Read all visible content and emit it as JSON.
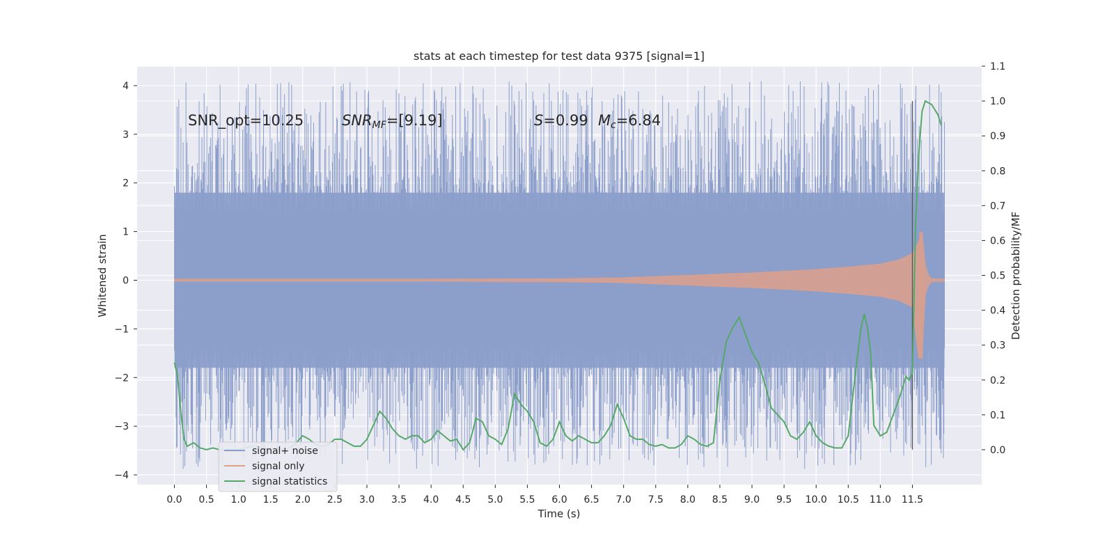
{
  "chart_data": {
    "type": "line",
    "title": "stats at each timestep for test data 9375 [signal=1]",
    "xlabel": "Time (s)",
    "ylabel": "Whitened strain",
    "y2label": "Detection probability/MF",
    "xlim": [
      -0.58,
      12.58
    ],
    "ylim": [
      -4.2,
      4.4
    ],
    "y2lim": [
      -0.1,
      1.1
    ],
    "grid": true,
    "legend_position": "lower-left",
    "x_ticks": [
      "0.0",
      "0.5",
      "1.0",
      "1.5",
      "2.0",
      "2.5",
      "3.0",
      "3.5",
      "4.0",
      "4.5",
      "5.0",
      "5.5",
      "6.0",
      "6.5",
      "7.0",
      "7.5",
      "8.0",
      "8.5",
      "9.0",
      "9.5",
      "10.0",
      "10.5",
      "11.0",
      "11.5"
    ],
    "y_ticks": [
      "−4",
      "−3",
      "−2",
      "−1",
      "0",
      "1",
      "2",
      "3",
      "4"
    ],
    "y2_ticks": [
      "0.0",
      "0.1",
      "0.2",
      "0.3",
      "0.4",
      "0.5",
      "0.6",
      "0.7",
      "0.8",
      "0.9",
      "1.0",
      "1.1"
    ],
    "annotations": {
      "snr_opt": "SNR_opt=10.25",
      "snr_mf_base": "SNR",
      "snr_mf_sub": "MF",
      "snr_mf_value": "=[9.19]",
      "s_symbol": "S",
      "s_value": "=0.99",
      "mc_base": "M",
      "mc_sub": "c",
      "mc_value": "=6.84"
    },
    "legend": [
      "signal+ noise",
      "signal only",
      "signal statistics"
    ],
    "colors": {
      "noise": "#8c9fcb",
      "signal": "#dd9f8a",
      "stats": "#55a868",
      "background": "#eaeaf2",
      "grid": "#ffffff"
    },
    "series": [
      {
        "name": "signal+ noise",
        "axis": "left",
        "time_range": [
          0.0,
          12.0
        ],
        "typical_band": [
          -1.8,
          1.8
        ],
        "spike_range": [
          -3.9,
          4.1
        ]
      },
      {
        "name": "signal only",
        "axis": "left",
        "merger_time": 11.65,
        "envelope": {
          "x": [
            0.0,
            2.0,
            4.0,
            6.0,
            7.0,
            8.0,
            9.0,
            10.0,
            10.5,
            11.0,
            11.3,
            11.5,
            11.6,
            11.65,
            11.7,
            11.75,
            11.8,
            12.0
          ],
          "y": [
            0.02,
            0.02,
            0.02,
            0.03,
            0.05,
            0.1,
            0.15,
            0.22,
            0.27,
            0.33,
            0.42,
            0.55,
            0.8,
            1.0,
            0.3,
            0.1,
            0.03,
            0.02
          ]
        },
        "lower_extremes": {
          "x": [
            11.45,
            11.62
          ],
          "y": [
            -0.55,
            -1.6
          ]
        }
      },
      {
        "name": "signal statistics",
        "axis": "right",
        "x": [
          0.0,
          0.05,
          0.1,
          0.15,
          0.2,
          0.3,
          0.4,
          0.5,
          0.6,
          0.7,
          0.8,
          0.9,
          1.0,
          1.1,
          1.2,
          1.3,
          1.4,
          1.5,
          1.6,
          1.7,
          1.8,
          1.9,
          2.0,
          2.1,
          2.2,
          2.3,
          2.4,
          2.5,
          2.6,
          2.7,
          2.8,
          2.9,
          3.0,
          3.1,
          3.2,
          3.3,
          3.4,
          3.5,
          3.6,
          3.7,
          3.8,
          3.9,
          4.0,
          4.1,
          4.2,
          4.3,
          4.4,
          4.5,
          4.6,
          4.7,
          4.8,
          4.9,
          5.0,
          5.1,
          5.2,
          5.3,
          5.4,
          5.5,
          5.6,
          5.7,
          5.8,
          5.9,
          6.0,
          6.1,
          6.2,
          6.3,
          6.4,
          6.5,
          6.6,
          6.7,
          6.8,
          6.9,
          7.0,
          7.1,
          7.2,
          7.3,
          7.4,
          7.5,
          7.6,
          7.7,
          7.8,
          7.9,
          8.0,
          8.1,
          8.2,
          8.3,
          8.4,
          8.5,
          8.6,
          8.7,
          8.8,
          8.9,
          9.0,
          9.1,
          9.2,
          9.3,
          9.4,
          9.5,
          9.6,
          9.7,
          9.8,
          9.9,
          10.0,
          10.1,
          10.2,
          10.3,
          10.4,
          10.5,
          10.6,
          10.7,
          10.75,
          10.8,
          10.85,
          10.9,
          11.0,
          11.1,
          11.2,
          11.3,
          11.4,
          11.45,
          11.5,
          11.55,
          11.6,
          11.65,
          11.7,
          11.8,
          11.9,
          11.95
        ],
        "y": [
          0.25,
          0.21,
          0.11,
          0.03,
          0.01,
          0.02,
          0.005,
          0.0,
          0.005,
          0.0,
          0.0,
          0.0,
          0.0,
          0.005,
          0.01,
          0.005,
          0.005,
          0.0,
          0.005,
          0.0,
          0.005,
          0.02,
          0.04,
          0.03,
          0.015,
          0.01,
          0.015,
          0.03,
          0.03,
          0.02,
          0.01,
          0.01,
          0.03,
          0.07,
          0.11,
          0.09,
          0.06,
          0.04,
          0.03,
          0.04,
          0.04,
          0.02,
          0.03,
          0.055,
          0.04,
          0.025,
          0.03,
          0.0,
          0.02,
          0.09,
          0.08,
          0.04,
          0.03,
          0.015,
          0.06,
          0.16,
          0.13,
          0.11,
          0.08,
          0.02,
          0.01,
          0.03,
          0.08,
          0.04,
          0.025,
          0.04,
          0.03,
          0.02,
          0.02,
          0.04,
          0.07,
          0.13,
          0.09,
          0.04,
          0.03,
          0.03,
          0.015,
          0.01,
          0.015,
          0.005,
          0.005,
          0.015,
          0.04,
          0.03,
          0.015,
          0.01,
          0.02,
          0.2,
          0.31,
          0.35,
          0.38,
          0.33,
          0.28,
          0.25,
          0.19,
          0.12,
          0.1,
          0.08,
          0.04,
          0.03,
          0.05,
          0.08,
          0.04,
          0.02,
          0.01,
          0.005,
          0.005,
          0.04,
          0.2,
          0.35,
          0.39,
          0.35,
          0.28,
          0.07,
          0.04,
          0.05,
          0.1,
          0.15,
          0.21,
          0.2,
          0.22,
          0.65,
          0.85,
          0.97,
          1.0,
          0.99,
          0.96,
          0.93
        ]
      }
    ],
    "vertical_marker": {
      "x": 11.5,
      "y2_range": [
        0.0,
        1.0
      ]
    }
  }
}
